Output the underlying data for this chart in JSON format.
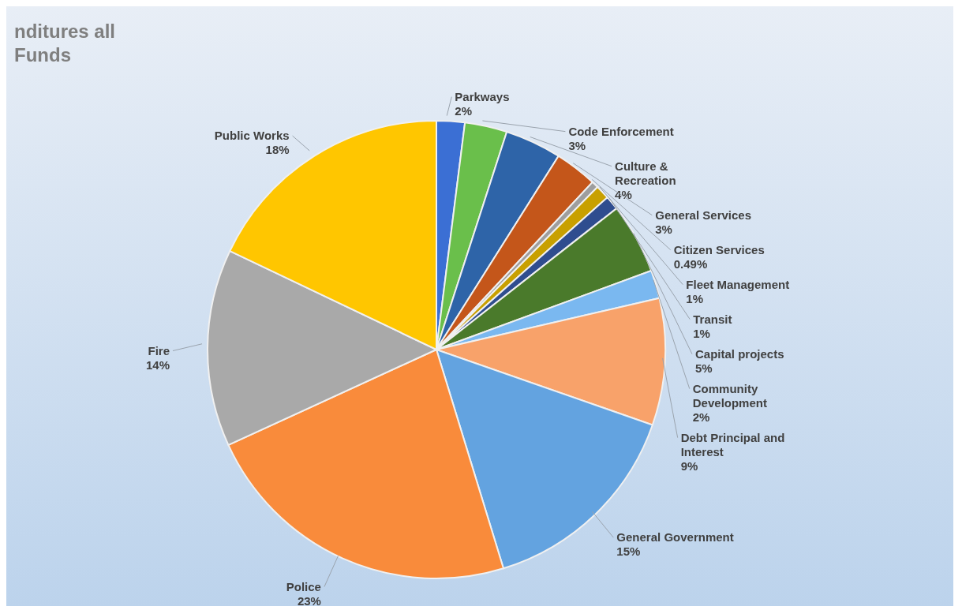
{
  "chart_data": {
    "type": "pie",
    "title": "nditures all Funds",
    "categories": [
      "Parkways",
      "Code Enforcement",
      "Culture & Recreation",
      "General Services",
      "Citizen Services",
      "Fleet Management",
      "Transit",
      "Capital projects",
      "Community Development",
      "Debt Principal and Interest",
      "General Government",
      "Police",
      "Fire",
      "Public Works"
    ],
    "values": [
      2,
      3,
      4,
      3,
      0.49,
      1,
      1,
      5,
      2,
      9,
      15,
      23,
      14,
      18
    ],
    "value_labels": [
      "2%",
      "3%",
      "4%",
      "3%",
      "0.49%",
      "1%",
      "1%",
      "5%",
      "2%",
      "9%",
      "15%",
      "23%",
      "14%",
      "18%"
    ],
    "colors": [
      "#3b6fd4",
      "#6abf4b",
      "#2e64a8",
      "#c4561a",
      "#9e9e9e",
      "#c8a000",
      "#2f4d8f",
      "#4a7a2b",
      "#7ab8f0",
      "#f8a26a",
      "#63a3e0",
      "#f98b3b",
      "#a9a9a9",
      "#ffc600"
    ]
  }
}
